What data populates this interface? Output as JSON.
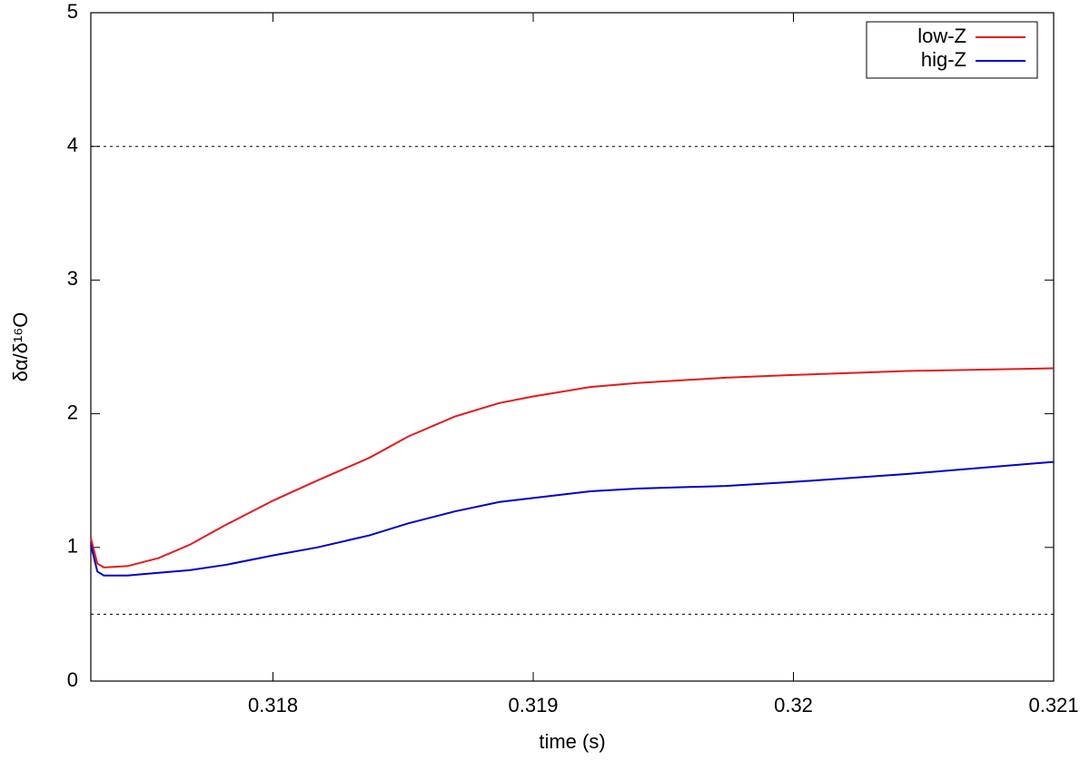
{
  "chart_data": {
    "type": "line",
    "xlabel": "time (s)",
    "ylabel": "δα/δ¹⁶O",
    "x": [
      0.3173,
      0.317325,
      0.31735,
      0.31744,
      0.31756,
      0.31768,
      0.31782,
      0.318,
      0.31817,
      0.31837,
      0.31852,
      0.3187,
      0.31887,
      0.319,
      0.31922,
      0.3194,
      0.31974,
      0.32,
      0.32044,
      0.321
    ],
    "series": [
      {
        "name": "low-Z",
        "color": "#e41a1c",
        "values": [
          1.07,
          0.88,
          0.85,
          0.86,
          0.92,
          1.02,
          1.17,
          1.35,
          1.5,
          1.67,
          1.83,
          1.98,
          2.08,
          2.13,
          2.2,
          2.23,
          2.27,
          2.29,
          2.32,
          2.34
        ]
      },
      {
        "name": "hig-Z",
        "color": "#0000cc",
        "values": [
          1.02,
          0.82,
          0.79,
          0.79,
          0.81,
          0.83,
          0.87,
          0.94,
          1.0,
          1.09,
          1.18,
          1.27,
          1.34,
          1.37,
          1.42,
          1.44,
          1.46,
          1.49,
          1.55,
          1.64
        ]
      }
    ],
    "hlines": [
      4,
      0.5
    ],
    "xlim": [
      0.3173,
      0.321
    ],
    "xticks": [
      0.318,
      0.319,
      0.32,
      0.321
    ],
    "ylim": [
      0,
      5
    ],
    "yticks": [
      0,
      1,
      2,
      3,
      4,
      5
    ],
    "legend": "top-right"
  }
}
